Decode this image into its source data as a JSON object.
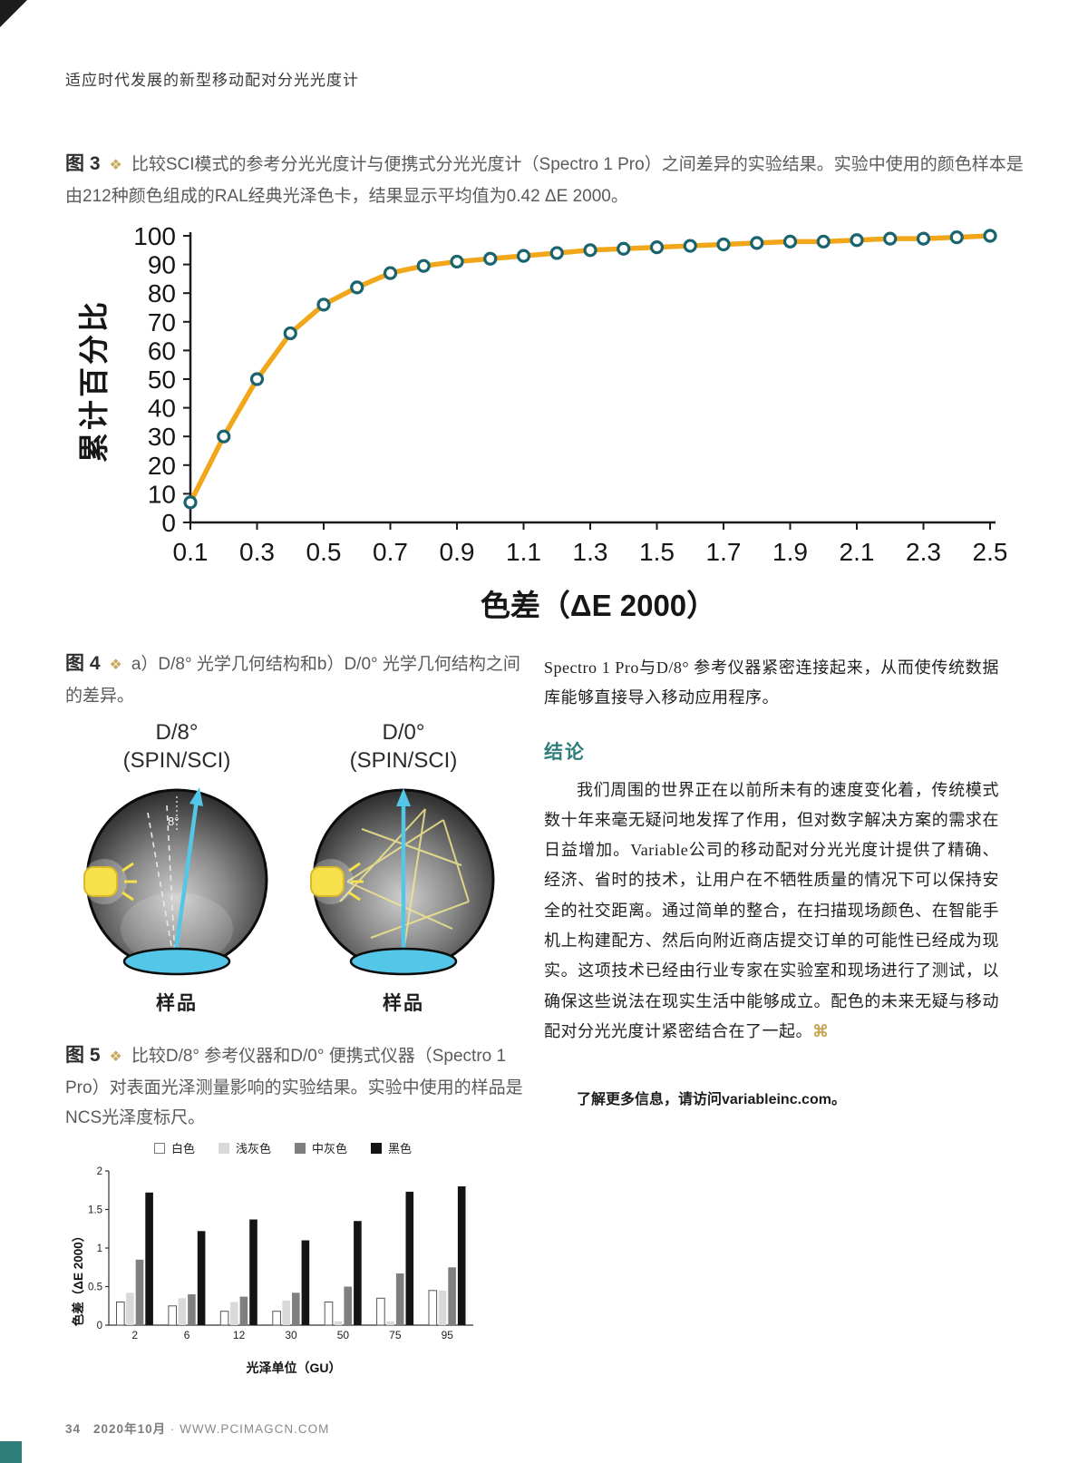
{
  "page": {
    "header": "适应时代发展的新型移动配对分光光度计",
    "footer": {
      "page_number": "34",
      "issue": "2020年10月",
      "separator": "·",
      "website": "WWW.PCIMAGCN.COM"
    }
  },
  "figure3": {
    "label": "图 3",
    "marker": "❖",
    "caption": "比较SCI模式的参考分光光度计与便携式分光光度计（Spectro 1 Pro）之间差异的实验结果。实验中使用的颜色样本是由212种颜色组成的RAL经典光泽色卡，结果显示平均值为0.42 ΔE 2000。"
  },
  "figure4": {
    "label": "图 4",
    "marker": "❖",
    "caption": "a）D/8° 光学几何结构和b）D/0° 光学几何结构之间的差异。",
    "diagrams": [
      {
        "title": "D/8°",
        "subtitle": "(SPIN/SCI)",
        "sample_label": "样品",
        "angle_label": "8°"
      },
      {
        "title": "D/0°",
        "subtitle": "(SPIN/SCI)",
        "sample_label": "样品"
      }
    ]
  },
  "figure5": {
    "label": "图 5",
    "marker": "❖",
    "caption": "比较D/8° 参考仪器和D/0° 便携式仪器（Spectro 1 Pro）对表面光泽测量影响的实验结果。实验中使用的样品是NCS光泽度标尺。"
  },
  "right_column": {
    "intro": "Spectro 1 Pro与D/8° 参考仪器紧密连接起来，从而使传统数据库能够直接导入移动应用程序。",
    "conclusion_heading": "结论",
    "conclusion_text": "我们周围的世界正在以前所未有的速度变化着，传统模式数十年来毫无疑问地发挥了作用，但对数字解决方案的需求在日益增加。Variable公司的移动配对分光光度计提供了精确、经济、省时的技术，让用户在不牺牲质量的情况下可以保持安全的社交距离。通过简单的整合，在扫描现场颜色、在智能手机上构建配方、然后向附近商店提交订单的可能性已经成为现实。这项技术已经由行业专家在实验室和现场进行了测试，以确保这些说法在现实生活中能够成立。配色的未来无疑与移动配对分光光度计紧密结合在了一起。",
    "end_mark": "⌘",
    "more_info": "了解更多信息，请访问variableinc.com。"
  },
  "colors": {
    "accent_teal": "#2E7F7C",
    "caption_gold": "#C9A85C",
    "curve_orange": "#F2A71B",
    "marker_ring": "#19646E",
    "sample_cyan": "#54C7E8"
  },
  "chart_data": [
    {
      "type": "line",
      "title": "",
      "xlabel": "色差（ΔE 2000）",
      "ylabel": "累计百分比",
      "ylim": [
        0,
        100
      ],
      "xlim": [
        0.1,
        2.5
      ],
      "yticks": [
        0,
        10,
        20,
        30,
        40,
        50,
        60,
        70,
        80,
        90,
        100
      ],
      "xticks": [
        0.1,
        0.3,
        0.5,
        0.7,
        0.9,
        1.1,
        1.3,
        1.5,
        1.7,
        1.9,
        2.1,
        2.3,
        2.5
      ],
      "x": [
        0.1,
        0.2,
        0.3,
        0.4,
        0.5,
        0.6,
        0.7,
        0.8,
        0.9,
        1.0,
        1.1,
        1.2,
        1.3,
        1.4,
        1.5,
        1.6,
        1.7,
        1.8,
        1.9,
        2.0,
        2.1,
        2.2,
        2.3,
        2.4,
        2.5
      ],
      "y": [
        7,
        30,
        50,
        66,
        76,
        82,
        87,
        89.5,
        91,
        92,
        93,
        94,
        95,
        95.5,
        96,
        96.5,
        97,
        97.5,
        98,
        98,
        98.5,
        99,
        99,
        99.5,
        100
      ],
      "line_color": "#F2A71B",
      "marker_fill": "#FFFFFF",
      "marker_stroke": "#19646E",
      "grid": false,
      "legend": "none"
    },
    {
      "type": "bar",
      "title": "",
      "xlabel": "光泽单位（GU）",
      "ylabel": "色差（ΔE 2000）",
      "ylim": [
        0,
        2
      ],
      "yticks": [
        0,
        0.5,
        1,
        1.5,
        2
      ],
      "categories": [
        "2",
        "6",
        "12",
        "30",
        "50",
        "75",
        "95"
      ],
      "series": [
        {
          "name": "白色",
          "color": "#FFFFFF",
          "values": [
            0.3,
            0.25,
            0.18,
            0.18,
            0.3,
            0.35,
            0.45
          ]
        },
        {
          "name": "浅灰色",
          "color": "#D9D9D9",
          "values": [
            0.42,
            0.35,
            0.3,
            0.32,
            0.05,
            0.05,
            0.45
          ]
        },
        {
          "name": "中灰色",
          "color": "#7F7F7F",
          "values": [
            0.85,
            0.4,
            0.37,
            0.42,
            0.5,
            0.67,
            0.75
          ]
        },
        {
          "name": "黑色",
          "color": "#141414",
          "values": [
            1.72,
            1.22,
            1.37,
            1.1,
            1.35,
            1.73,
            1.8
          ]
        }
      ],
      "grid": false,
      "legend": "top"
    }
  ]
}
